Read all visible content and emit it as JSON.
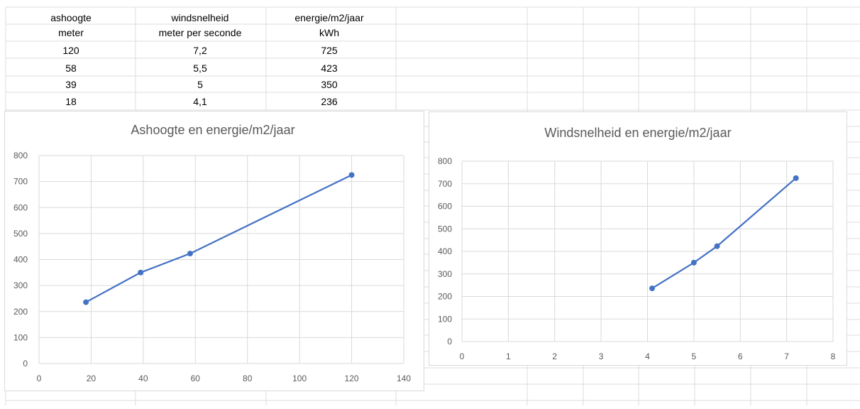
{
  "table": {
    "headers": [
      "ashoogte",
      "windsnelheid",
      "energie/m2/jaar"
    ],
    "units": [
      "meter",
      "meter per seconde",
      "kWh"
    ],
    "rows": [
      [
        "120",
        "7,2",
        "725"
      ],
      [
        "58",
        "5,5",
        "423"
      ],
      [
        "39",
        "5",
        "350"
      ],
      [
        "18",
        "4,1",
        "236"
      ]
    ]
  },
  "chart_data": [
    {
      "type": "scatter",
      "title": "Ashoogte en energie/m2/jaar",
      "xlabel": "",
      "ylabel": "",
      "xlim": [
        0,
        140
      ],
      "ylim": [
        0,
        800
      ],
      "xticks": [
        "0",
        "20",
        "40",
        "60",
        "80",
        "100",
        "120",
        "140"
      ],
      "yticks": [
        "0",
        "100",
        "200",
        "300",
        "400",
        "500",
        "600",
        "700",
        "800"
      ],
      "grid": true,
      "series": [
        {
          "x": [
            18,
            39,
            58,
            120
          ],
          "y": [
            236,
            350,
            423,
            725
          ]
        }
      ],
      "line_color": "#4472c4"
    },
    {
      "type": "scatter",
      "title": "Windsnelheid  en energie/m2/jaar",
      "xlabel": "",
      "ylabel": "",
      "xlim": [
        0,
        8
      ],
      "ylim": [
        0,
        800
      ],
      "xticks": [
        "0",
        "1",
        "2",
        "3",
        "4",
        "5",
        "6",
        "7",
        "8"
      ],
      "yticks": [
        "0",
        "100",
        "200",
        "300",
        "400",
        "500",
        "600",
        "700",
        "800"
      ],
      "grid": true,
      "series": [
        {
          "x": [
            4.1,
            5,
            5.5,
            7.2
          ],
          "y": [
            236,
            350,
            423,
            725
          ]
        }
      ],
      "line_color": "#4472c4"
    }
  ]
}
